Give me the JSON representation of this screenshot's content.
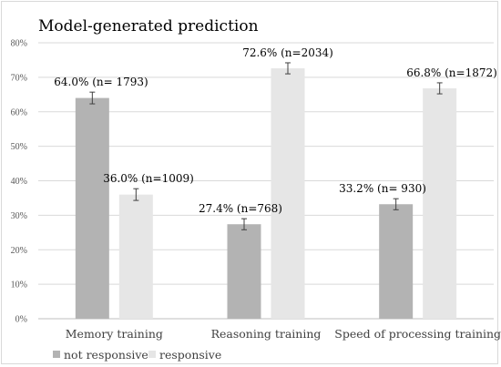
{
  "chart_data": {
    "type": "bar",
    "title": "Model-generated prediction",
    "categories": [
      "Memory training",
      "Reasoning training",
      "Speed of processing training"
    ],
    "series": [
      {
        "name": "not responsive",
        "color": "#b3b3b3",
        "values": [
          64.0,
          27.4,
          33.2
        ],
        "error": [
          1.7,
          1.6,
          1.6
        ],
        "labels": [
          "64.0% (n= 1793)",
          "27.4% (n=768)",
          "33.2% (n= 930)"
        ]
      },
      {
        "name": "responsive",
        "color": "#e6e6e6",
        "values": [
          36.0,
          72.6,
          66.8
        ],
        "error": [
          1.7,
          1.6,
          1.6
        ],
        "labels": [
          "36.0% (n=1009)",
          "72.6% (n=2034)",
          "66.8% (n=1872)"
        ]
      }
    ],
    "yticks": [
      "0%",
      "10%",
      "20%",
      "30%",
      "40%",
      "50%",
      "60%",
      "70%",
      "80%"
    ],
    "ylim": [
      0,
      80
    ],
    "grid": true,
    "legend": "bottom-left"
  }
}
